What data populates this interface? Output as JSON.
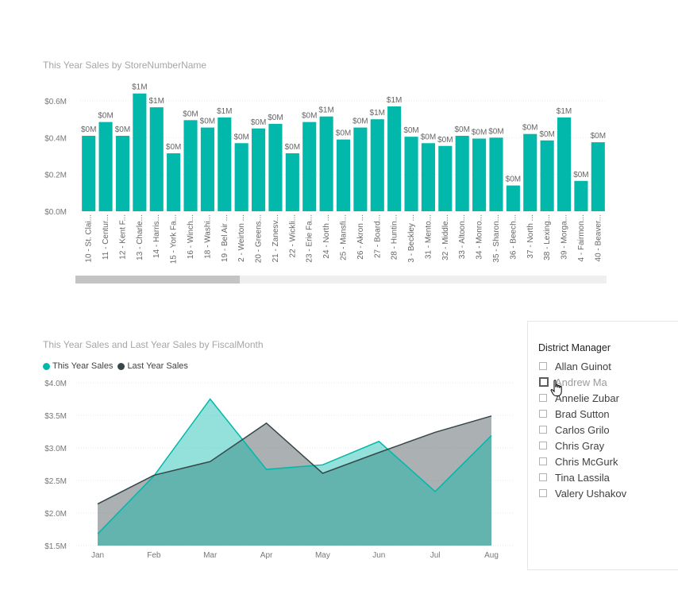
{
  "chart_data": [
    {
      "type": "bar",
      "title": "This Year Sales by StoreNumberName",
      "categories": [
        "10 - St. Clai...",
        "11 - Centur...",
        "12 - Kent F...",
        "13 - Charle...",
        "14 - Harris...",
        "15 - York Fa...",
        "16 - Winch...",
        "18 - Washi...",
        "19 - Bel Air ...",
        "2 - Weirton ...",
        "20 - Greens...",
        "21 - Zanesv...",
        "22 - Wickli...",
        "23 - Erie Fa...",
        "24 - North ...",
        "25 - Mansfi...",
        "26 - Akron ...",
        "27 - Board...",
        "28 - Huntin...",
        "3 - Beckley ...",
        "31 - Mento...",
        "32 - Middle...",
        "33 - Altoon...",
        "34 - Monro...",
        "35 - Sharon...",
        "36 - Beech...",
        "37 - North ...",
        "38 - Lexing...",
        "39 - Morga...",
        "4 - Fairmon...",
        "40 - Beaver..."
      ],
      "values": [
        0.41,
        0.485,
        0.41,
        0.64,
        0.565,
        0.315,
        0.495,
        0.455,
        0.51,
        0.37,
        0.45,
        0.475,
        0.315,
        0.485,
        0.515,
        0.39,
        0.455,
        0.5,
        0.57,
        0.405,
        0.37,
        0.355,
        0.41,
        0.395,
        0.4,
        0.14,
        0.42,
        0.385,
        0.51,
        0.165,
        0.375
      ],
      "data_labels": [
        "$0M",
        "$0M",
        "$0M",
        "$1M",
        "$1M",
        "$0M",
        "$0M",
        "$0M",
        "$1M",
        "$0M",
        "$0M",
        "$0M",
        "$0M",
        "$0M",
        "$1M",
        "$0M",
        "$0M",
        "$1M",
        "$1M",
        "$0M",
        "$0M",
        "$0M",
        "$0M",
        "$0M",
        "$0M",
        "$0M",
        "$0M",
        "$0M",
        "$1M",
        "$0M",
        "$0M"
      ],
      "y_ticks": [
        "$0.0M",
        "$0.2M",
        "$0.4M",
        "$0.6M"
      ],
      "ylim": [
        0,
        0.6
      ],
      "unit": "$M",
      "color": "#01b8aa",
      "grid": true
    },
    {
      "type": "area",
      "title": "This Year Sales and Last Year Sales by FiscalMonth",
      "categories": [
        "Jan",
        "Feb",
        "Mar",
        "Apr",
        "May",
        "Jun",
        "Jul",
        "Aug"
      ],
      "series": [
        {
          "name": "This Year Sales",
          "values": [
            1.68,
            2.57,
            3.75,
            2.67,
            2.74,
            3.1,
            2.33,
            3.19
          ],
          "color": "#01b8aa"
        },
        {
          "name": "Last Year Sales",
          "values": [
            2.14,
            2.58,
            2.79,
            3.38,
            2.61,
            2.93,
            3.24,
            3.49
          ],
          "color": "#374649"
        }
      ],
      "y_ticks": [
        "$1.5M",
        "$2.0M",
        "$2.5M",
        "$3.0M",
        "$3.5M",
        "$4.0M"
      ],
      "ylim": [
        1.5,
        4.0
      ],
      "legend": "top-left",
      "grid": true
    }
  ],
  "slicer": {
    "header": "District Manager",
    "items": [
      "Allan Guinot",
      "Andrew Ma",
      "Annelie Zubar",
      "Brad Sutton",
      "Carlos Grilo",
      "Chris Gray",
      "Chris McGurk",
      "Tina Lassila",
      "Valery Ushakov"
    ],
    "hovered_item": "Andrew Ma"
  },
  "icons": {
    "cursor": "hand-pointer-icon"
  }
}
